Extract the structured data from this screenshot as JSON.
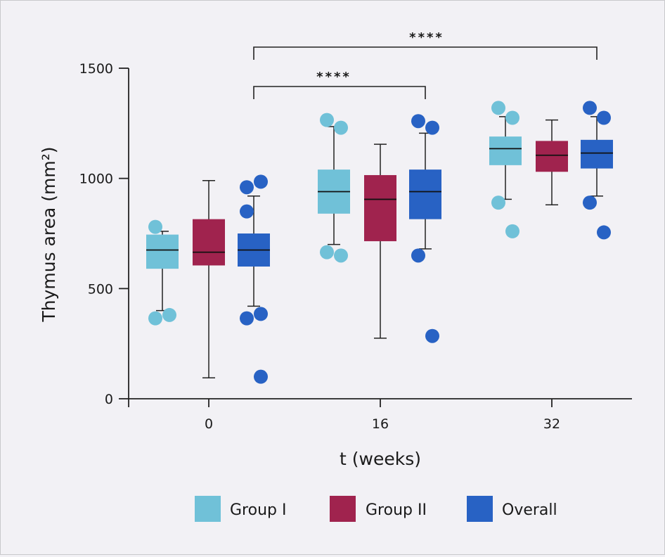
{
  "chart_data": {
    "type": "box",
    "ylabel": "Thymus area (mm²)",
    "xlabel": "t (weeks)",
    "ylim": [
      0,
      1500
    ],
    "yticks": [
      0,
      500,
      1000,
      1500
    ],
    "categories": [
      "0",
      "16",
      "32"
    ],
    "legend_position": "bottom",
    "series": [
      {
        "name": "Group I",
        "color": "#70c1d8",
        "boxes": [
          {
            "q1": 590,
            "median": 675,
            "q3": 745,
            "whisker_low": 400,
            "whisker_high": 760,
            "outliers": [
              780,
              380,
              365
            ]
          },
          {
            "q1": 840,
            "median": 940,
            "q3": 1040,
            "whisker_low": 700,
            "whisker_high": 1235,
            "outliers": [
              1265,
              1230,
              665,
              650
            ]
          },
          {
            "q1": 1060,
            "median": 1135,
            "q3": 1190,
            "whisker_low": 905,
            "whisker_high": 1280,
            "outliers": [
              1320,
              1275,
              890,
              760
            ]
          }
        ]
      },
      {
        "name": "Group II",
        "color": "#a0234e",
        "boxes": [
          {
            "q1": 605,
            "median": 665,
            "q3": 815,
            "whisker_low": 95,
            "whisker_high": 990,
            "outliers": []
          },
          {
            "q1": 715,
            "median": 905,
            "q3": 1015,
            "whisker_low": 275,
            "whisker_high": 1155,
            "outliers": []
          },
          {
            "q1": 1030,
            "median": 1105,
            "q3": 1170,
            "whisker_low": 880,
            "whisker_high": 1265,
            "outliers": []
          }
        ]
      },
      {
        "name": "Overall",
        "color": "#2862c4",
        "boxes": [
          {
            "q1": 600,
            "median": 675,
            "q3": 750,
            "whisker_low": 420,
            "whisker_high": 920,
            "outliers": [
              960,
              985,
              850,
              385,
              365,
              100
            ]
          },
          {
            "q1": 815,
            "median": 940,
            "q3": 1040,
            "whisker_low": 680,
            "whisker_high": 1205,
            "outliers": [
              1260,
              1230,
              650,
              285
            ]
          },
          {
            "q1": 1045,
            "median": 1115,
            "q3": 1175,
            "whisker_low": 920,
            "whisker_high": 1280,
            "outliers": [
              1320,
              1275,
              890,
              755
            ]
          }
        ]
      }
    ],
    "annotations": [
      {
        "label": "****",
        "from_category": "0",
        "to_category": "16"
      },
      {
        "label": "****",
        "from_category": "0",
        "to_category": "32"
      }
    ]
  }
}
